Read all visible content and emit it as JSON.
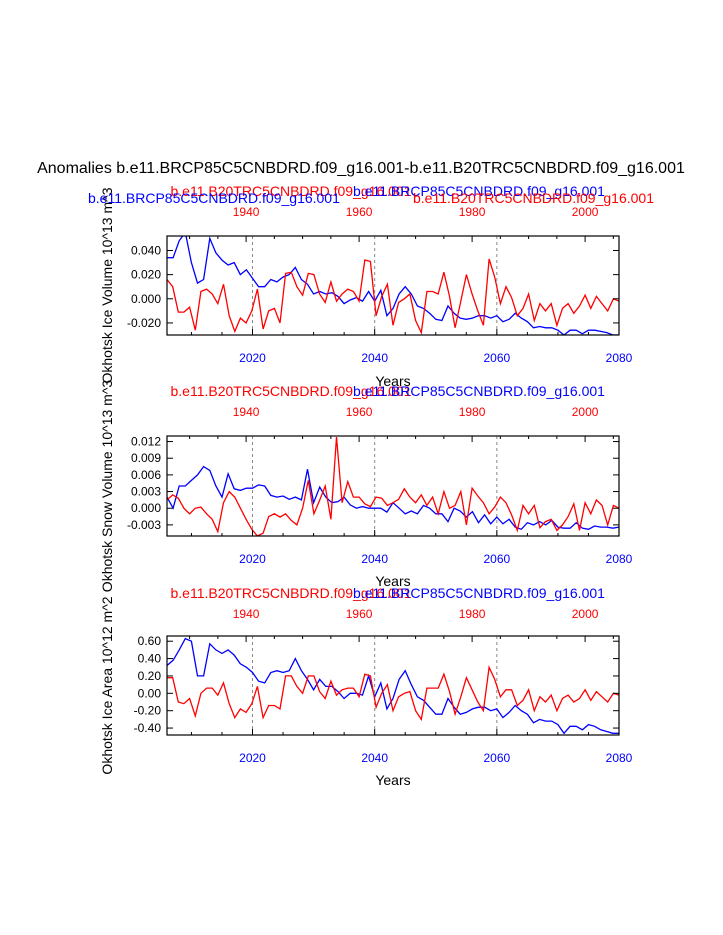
{
  "page_title": "Anomalies b.e11.BRCP85C5CNBDRD.f09_g16.001-b.e11.B20TRC5CNBDRD.f09_g16.001",
  "colors": {
    "red": "#ff0000",
    "blue": "#0000ff",
    "axis": "#000000",
    "grid": "#888888"
  },
  "chart_data": [
    {
      "type": "line",
      "ylabel": "Okhotsk Ice Volume 10^13 m^3",
      "xlabel": "Years",
      "top_titles": [
        "b.e11.B20TRC5CNBDRD.f09_g16.001",
        "b.e11.BRCP85C5CNBDRD.f09_g16.001"
      ],
      "left_title": "b.e11.BRCP85C5CNBDRD.f09_g16.001",
      "right_title": "b.e11.B20TRC5CNBDRD.f09_g16.001",
      "bottom_axis": {
        "range": [
          2006,
          2080
        ],
        "ticks": [
          "2020",
          "2040",
          "2060",
          "2080"
        ]
      },
      "top_axis": {
        "range": [
          1926,
          2006
        ],
        "ticks": [
          "1940",
          "1960",
          "1980",
          "2000"
        ]
      },
      "ylim": [
        -0.03,
        0.052
      ],
      "yticks": [
        "0.040",
        "0.020",
        "0.000",
        "-0.020"
      ],
      "grid_x_bottom": [
        2020,
        2040,
        2060
      ],
      "series": [
        {
          "name": "b.e11.BRCP85C5CNBDRD.f09_g16.001",
          "axis": "bottom",
          "color": "blue",
          "start": 2006,
          "end": 2080,
          "values": [
            0.034,
            0.034,
            0.048,
            0.055,
            0.03,
            0.013,
            0.016,
            0.05,
            0.038,
            0.032,
            0.028,
            0.03,
            0.02,
            0.024,
            0.017,
            0.01,
            0.01,
            0.016,
            0.014,
            0.018,
            0.02,
            0.026,
            0.016,
            0.012,
            0.004,
            0.006,
            0.004,
            0.005,
            0.002,
            -0.004,
            -0.001,
            0.001,
            -0.002,
            0.006,
            -0.002,
            0.007,
            -0.014,
            -0.008,
            0.004,
            0.01,
            0.004,
            -0.006,
            -0.008,
            -0.012,
            -0.017,
            -0.018,
            -0.006,
            -0.012,
            -0.016,
            -0.017,
            -0.016,
            -0.014,
            -0.014,
            -0.016,
            -0.014,
            -0.019,
            -0.017,
            -0.012,
            -0.016,
            -0.019,
            -0.024,
            -0.023,
            -0.024,
            -0.024,
            -0.026,
            -0.03,
            -0.026,
            -0.026,
            -0.029,
            -0.026,
            -0.026,
            -0.027,
            -0.028,
            -0.03,
            -0.03
          ]
        },
        {
          "name": "b.e11.B20TRC5CNBDRD.f09_g16.001",
          "axis": "top",
          "color": "red",
          "start": 1926,
          "end": 2006,
          "values": [
            0.016,
            0.01,
            -0.011,
            -0.011,
            -0.007,
            -0.026,
            0.006,
            0.008,
            0.004,
            -0.004,
            0.012,
            -0.014,
            -0.027,
            -0.016,
            -0.02,
            -0.01,
            0.008,
            -0.025,
            -0.01,
            -0.008,
            -0.02,
            0.021,
            0.022,
            0.01,
            0.003,
            0.021,
            0.02,
            0.004,
            -0.003,
            0.014,
            -0.002,
            0.004,
            0.008,
            0.006,
            -0.002,
            0.032,
            0.031,
            -0.014,
            0.002,
            0.012,
            -0.022,
            -0.003,
            0.0,
            0.004,
            -0.018,
            -0.028,
            0.006,
            0.006,
            0.004,
            0.022,
            0.002,
            -0.024,
            -0.002,
            0.02,
            0.004,
            -0.01,
            -0.022,
            0.033,
            0.018,
            -0.004,
            0.01,
            0.001,
            -0.014,
            -0.008,
            0.004,
            -0.018,
            -0.004,
            -0.01,
            -0.004,
            -0.022,
            -0.008,
            -0.004,
            -0.012,
            -0.006,
            0.003,
            -0.008,
            0.002,
            -0.004,
            -0.01,
            0.0,
            -0.002
          ]
        }
      ]
    },
    {
      "type": "line",
      "ylabel": "Okhotsk Snow Volume 10^13 m^3",
      "xlabel": "Years",
      "top_titles": [
        "b.e11.B20TRC5CNBDRD.f09_g16.001",
        "b.e11.BRCP85C5CNBDRD.f09_g16.001"
      ],
      "bottom_axis": {
        "range": [
          2006,
          2080
        ],
        "ticks": [
          "2020",
          "2040",
          "2060",
          "2080"
        ]
      },
      "top_axis": {
        "range": [
          1926,
          2006
        ],
        "ticks": [
          "1940",
          "1960",
          "1980",
          "2000"
        ]
      },
      "ylim": [
        -0.005,
        0.013
      ],
      "yticks": [
        "0.012",
        "0.009",
        "0.006",
        "0.003",
        "0.000",
        "-0.003"
      ],
      "grid_x_bottom": [
        2020,
        2040,
        2060
      ],
      "series": [
        {
          "name": "b.e11.BRCP85C5CNBDRD.f09_g16.001",
          "axis": "bottom",
          "color": "blue",
          "start": 2006,
          "end": 2080,
          "values": [
            0.002,
            0.0,
            0.004,
            0.004,
            0.005,
            0.006,
            0.0075,
            0.0068,
            0.004,
            0.002,
            0.0062,
            0.0035,
            0.0032,
            0.0036,
            0.0036,
            0.0042,
            0.004,
            0.0023,
            0.002,
            0.0022,
            0.0016,
            0.002,
            0.0015,
            0.007,
            0.001,
            0.0038,
            0.002,
            0.001,
            0.0012,
            0.002,
            0.0006,
            0.0,
            0.0003,
            0.0,
            0.0,
            0.0,
            -0.0007,
            0.001,
            0.0,
            -0.001,
            -0.0005,
            -0.001,
            0.0005,
            0.0,
            -0.001,
            -0.001,
            -0.0024,
            0.0,
            -0.0005,
            -0.0016,
            -0.0006,
            -0.0026,
            -0.0012,
            -0.0028,
            -0.0016,
            -0.0028,
            -0.002,
            -0.0034,
            -0.0038,
            -0.0026,
            -0.003,
            -0.0024,
            -0.003,
            -0.0022,
            -0.0034,
            -0.0036,
            -0.0036,
            -0.0026,
            -0.0036,
            -0.0038,
            -0.0032,
            -0.0034,
            -0.0034,
            -0.0036,
            -0.0034
          ]
        },
        {
          "name": "b.e11.B20TRC5CNBDRD.f09_g16.001",
          "axis": "top",
          "color": "red",
          "start": 1926,
          "end": 2006,
          "values": [
            0.0015,
            0.0024,
            0.0018,
            0.0,
            -0.001,
            0.0,
            0.0002,
            -0.001,
            -0.002,
            -0.0042,
            0.001,
            0.003,
            0.002,
            0.0,
            -0.002,
            -0.0038,
            -0.005,
            -0.0045,
            -0.0015,
            -0.001,
            -0.0016,
            -0.001,
            -0.0022,
            -0.003,
            0.0,
            0.005,
            -0.001,
            0.0014,
            0.004,
            -0.002,
            0.0128,
            0.001,
            0.0048,
            0.002,
            0.002,
            0.0008,
            0.0003,
            0.002,
            0.0018,
            0.0005,
            0.001,
            0.0016,
            0.0035,
            0.002,
            0.001,
            0.0024,
            0.0005,
            0.002,
            -0.001,
            0.003,
            0.0,
            0.0005,
            0.003,
            -0.003,
            0.0036,
            0.0022,
            0.001,
            -0.001,
            0.0002,
            0.002,
            0.001,
            -0.0012,
            -0.004,
            0.0005,
            -0.001,
            0.0005,
            -0.0035,
            -0.0024,
            -0.002,
            -0.004,
            -0.003,
            -0.0015,
            0.0008,
            -0.004,
            0.001,
            -0.001,
            0.0015,
            0.0005,
            -0.003,
            0.0005,
            0.0
          ]
        }
      ]
    },
    {
      "type": "line",
      "ylabel": "Okhotsk Ice Area 10^12 m^2",
      "xlabel": "Years",
      "top_titles": [
        "b.e11.B20TRC5CNBDRD.f09_g16.001",
        "b.e11.BRCP85C5CNBDRD.f09_g16.001"
      ],
      "bottom_axis": {
        "range": [
          2006,
          2080
        ],
        "ticks": [
          "2020",
          "2040",
          "2060",
          "2080"
        ]
      },
      "top_axis": {
        "range": [
          1926,
          2006
        ],
        "ticks": [
          "1940",
          "1960",
          "1980",
          "2000"
        ]
      },
      "ylim": [
        -0.48,
        0.66
      ],
      "yticks": [
        "0.60",
        "0.40",
        "0.20",
        "0.00",
        "-0.20",
        "-0.40"
      ],
      "grid_x_bottom": [
        2020,
        2040,
        2060
      ],
      "series": [
        {
          "name": "b.e11.BRCP85C5CNBDRD.f09_g16.001",
          "axis": "bottom",
          "color": "blue",
          "start": 2006,
          "end": 2080,
          "values": [
            0.32,
            0.38,
            0.5,
            0.63,
            0.6,
            0.2,
            0.2,
            0.57,
            0.5,
            0.46,
            0.5,
            0.44,
            0.34,
            0.3,
            0.24,
            0.14,
            0.12,
            0.24,
            0.26,
            0.24,
            0.26,
            0.4,
            0.26,
            0.16,
            0.04,
            0.16,
            0.08,
            0.08,
            0.02,
            -0.06,
            0.0,
            0.0,
            -0.02,
            0.2,
            -0.04,
            0.12,
            -0.18,
            -0.06,
            0.16,
            0.26,
            0.1,
            -0.04,
            -0.08,
            -0.16,
            -0.24,
            -0.24,
            -0.06,
            -0.16,
            -0.24,
            -0.22,
            -0.18,
            -0.16,
            -0.16,
            -0.2,
            -0.18,
            -0.28,
            -0.22,
            -0.14,
            -0.2,
            -0.24,
            -0.34,
            -0.3,
            -0.32,
            -0.32,
            -0.36,
            -0.46,
            -0.38,
            -0.38,
            -0.42,
            -0.36,
            -0.38,
            -0.42,
            -0.44,
            -0.46,
            -0.46
          ]
        },
        {
          "name": "b.e11.B20TRC5CNBDRD.f09_g16.001",
          "axis": "top",
          "color": "red",
          "start": 1926,
          "end": 2006,
          "values": [
            0.18,
            0.18,
            -0.1,
            -0.12,
            -0.06,
            -0.26,
            0.0,
            0.06,
            0.06,
            -0.02,
            0.12,
            -0.12,
            -0.28,
            -0.18,
            -0.22,
            -0.12,
            0.08,
            -0.28,
            -0.14,
            -0.14,
            -0.18,
            0.2,
            0.2,
            0.08,
            0.0,
            0.2,
            0.2,
            0.02,
            -0.06,
            0.14,
            -0.02,
            0.04,
            0.06,
            0.06,
            -0.04,
            0.22,
            0.2,
            -0.16,
            0.0,
            0.1,
            -0.2,
            -0.04,
            0.0,
            0.02,
            -0.2,
            -0.3,
            0.06,
            0.06,
            0.06,
            0.22,
            0.02,
            -0.24,
            -0.04,
            0.18,
            0.04,
            -0.1,
            -0.2,
            0.3,
            0.16,
            -0.04,
            0.04,
            0.04,
            -0.14,
            -0.08,
            0.04,
            -0.2,
            -0.04,
            -0.1,
            -0.02,
            -0.2,
            -0.06,
            -0.02,
            -0.1,
            -0.06,
            0.04,
            -0.08,
            0.02,
            -0.04,
            -0.1,
            0.0,
            -0.02
          ]
        }
      ]
    }
  ]
}
